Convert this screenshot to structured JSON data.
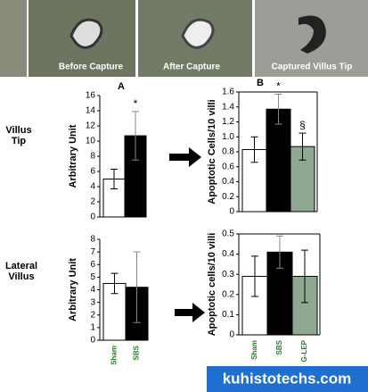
{
  "images": {
    "captions": [
      "Before Capture",
      "After Capture",
      "Captured Villus Tip"
    ]
  },
  "row_labels": [
    "Villus Tip",
    "Lateral Villus"
  ],
  "watermark": "kuhistotechs.com",
  "chart_data": [
    {
      "type": "bar",
      "panel": "A",
      "y_label": "Arbitrary Unit",
      "categories": [
        null,
        null
      ],
      "series": [
        {
          "colors": [
            "#ffffff",
            "#000000"
          ],
          "values": [
            5,
            10.7
          ],
          "errors": [
            1.3,
            3.2
          ]
        }
      ],
      "annotations": [
        null,
        "*"
      ],
      "ylim": [
        0,
        16
      ],
      "yticks": [
        0,
        2,
        4,
        6,
        8,
        10,
        12,
        14,
        16
      ]
    },
    {
      "type": "bar",
      "panel": "B",
      "y_label": "Apoptotic Cells/10 villi",
      "categories": [
        null,
        null,
        null
      ],
      "series": [
        {
          "colors": [
            "#ffffff",
            "#000000",
            "#8fa892"
          ],
          "values": [
            0.83,
            1.37,
            0.87
          ],
          "errors": [
            0.17,
            0.2,
            0.18
          ]
        }
      ],
      "annotations": [
        null,
        "*",
        "§"
      ],
      "ylim": [
        0,
        1.6
      ],
      "yticks": [
        0,
        0.2,
        0.4,
        0.6,
        0.8,
        {
          "value": 1,
          "label": "1.0"
        },
        1.2,
        1.4,
        1.6
      ]
    },
    {
      "type": "bar",
      "y_label": "Arbitrary Unit",
      "categories": [
        "Sham",
        "SBS"
      ],
      "series": [
        {
          "colors": [
            "#ffffff",
            "#000000"
          ],
          "values": [
            4.5,
            4.2
          ],
          "errors": [
            0.8,
            2.8
          ]
        }
      ],
      "ylim": [
        0,
        8
      ],
      "yticks": [
        0,
        1,
        2,
        3,
        4,
        5,
        6,
        7,
        8
      ]
    },
    {
      "type": "bar",
      "y_label": "Apoptotic cells/10 villi",
      "categories": [
        "Sham",
        "SBS",
        "G-LEP"
      ],
      "series": [
        {
          "colors": [
            "#ffffff",
            "#000000",
            "#8fa892"
          ],
          "values": [
            0.29,
            0.41,
            0.29
          ],
          "errors": [
            0.1,
            0.08,
            0.13
          ]
        }
      ],
      "ylim": [
        0,
        0.5
      ],
      "yticks": [
        0,
        0.1,
        0.2,
        0.3,
        0.4,
        0.5
      ]
    }
  ]
}
